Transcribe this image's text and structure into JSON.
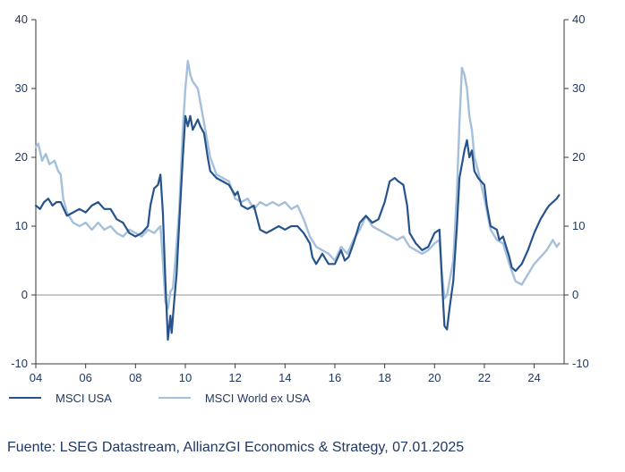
{
  "footer": {
    "source": "Fuente: LSEG Datastream, AllianzGI Economics & Strategy, 07.01.2025"
  },
  "chart_data": {
    "type": "line",
    "title": "",
    "xlabel": "",
    "ylabel": "",
    "grid": false,
    "legend_position": "bottom-left",
    "ylim": [
      -10,
      40
    ],
    "xlim": [
      2004,
      2025.2
    ],
    "yticks": [
      40,
      30,
      20,
      10,
      0,
      -10
    ],
    "xticks": [
      {
        "label": "04",
        "value": 2004
      },
      {
        "label": "06",
        "value": 2006
      },
      {
        "label": "08",
        "value": 2008
      },
      {
        "label": "10",
        "value": 2010
      },
      {
        "label": "12",
        "value": 2012
      },
      {
        "label": "14",
        "value": 2014
      },
      {
        "label": "16",
        "value": 2016
      },
      {
        "label": "18",
        "value": 2018
      },
      {
        "label": "20",
        "value": 2020
      },
      {
        "label": "22",
        "value": 2022
      },
      {
        "label": "24",
        "value": 2024
      }
    ],
    "zero_line": true,
    "axis_color": "#3a3a3a",
    "zero_line_color": "#909090",
    "text_color": "#1f3864",
    "series": [
      {
        "name": "MSCI USA",
        "color": "#26538c",
        "width": 2.2,
        "x": [
          2004.0,
          2004.17,
          2004.33,
          2004.5,
          2004.67,
          2004.83,
          2005.0,
          2005.25,
          2005.5,
          2005.75,
          2006.0,
          2006.25,
          2006.5,
          2006.75,
          2007.0,
          2007.25,
          2007.5,
          2007.75,
          2008.0,
          2008.25,
          2008.5,
          2008.6,
          2008.75,
          2008.9,
          2009.0,
          2009.1,
          2009.2,
          2009.3,
          2009.4,
          2009.45,
          2009.55,
          2009.65,
          2009.75,
          2009.9,
          2010.0,
          2010.1,
          2010.2,
          2010.3,
          2010.5,
          2010.6,
          2010.75,
          2010.9,
          2011.0,
          2011.25,
          2011.5,
          2011.75,
          2012.0,
          2012.1,
          2012.25,
          2012.5,
          2012.75,
          2013.0,
          2013.25,
          2013.5,
          2013.75,
          2014.0,
          2014.25,
          2014.5,
          2014.75,
          2015.0,
          2015.1,
          2015.25,
          2015.5,
          2015.75,
          2016.0,
          2016.25,
          2016.4,
          2016.55,
          2016.75,
          2017.0,
          2017.25,
          2017.5,
          2017.75,
          2018.0,
          2018.2,
          2018.4,
          2018.55,
          2018.75,
          2018.9,
          2019.0,
          2019.25,
          2019.5,
          2019.75,
          2020.0,
          2020.2,
          2020.3,
          2020.4,
          2020.5,
          2020.6,
          2020.75,
          2020.9,
          2021.0,
          2021.1,
          2021.2,
          2021.3,
          2021.4,
          2021.5,
          2021.6,
          2021.75,
          2022.0,
          2022.1,
          2022.25,
          2022.5,
          2022.6,
          2022.75,
          2023.0,
          2023.1,
          2023.25,
          2023.5,
          2023.75,
          2024.0,
          2024.25,
          2024.5,
          2024.6,
          2024.75,
          2024.9,
          2025.0
        ],
        "y": [
          13,
          12.5,
          13.5,
          14,
          13,
          13.5,
          13.5,
          11.5,
          12,
          12.5,
          12,
          13,
          13.5,
          12.5,
          12.5,
          11,
          10.5,
          9,
          8.5,
          9,
          10,
          13,
          15.5,
          16,
          17.5,
          12,
          2,
          -6.5,
          -3,
          -5.5,
          -1,
          3,
          10,
          20,
          26,
          24.5,
          26,
          24,
          25.5,
          24.5,
          23.5,
          20,
          18,
          17,
          16.5,
          16,
          14.5,
          15,
          13,
          12.5,
          13,
          9.5,
          9,
          9.5,
          10,
          9.5,
          10,
          10,
          9,
          7.5,
          5.5,
          4.5,
          6,
          4.5,
          4.5,
          6.5,
          5,
          5.5,
          7.5,
          10.5,
          11.5,
          10.5,
          11,
          13.5,
          16.5,
          17,
          16.5,
          16,
          13,
          9,
          7.5,
          6.5,
          7,
          9,
          9.5,
          2,
          -4.5,
          -5,
          -2,
          2,
          10,
          17,
          19,
          21,
          22.5,
          20,
          21,
          18,
          17,
          16,
          13,
          10,
          9.5,
          8,
          8.5,
          5.5,
          4,
          3.5,
          4.5,
          6.5,
          9,
          11,
          12.5,
          13,
          13.5,
          14,
          14.5
        ]
      },
      {
        "name": "MSCI World ex USA",
        "color": "#a5c0da",
        "width": 2.4,
        "x": [
          2004.0,
          2004.1,
          2004.25,
          2004.4,
          2004.55,
          2004.75,
          2004.9,
          2005.0,
          2005.1,
          2005.25,
          2005.5,
          2005.75,
          2006.0,
          2006.25,
          2006.5,
          2006.75,
          2007.0,
          2007.25,
          2007.5,
          2007.75,
          2008.0,
          2008.25,
          2008.5,
          2008.75,
          2009.0,
          2009.1,
          2009.2,
          2009.3,
          2009.4,
          2009.5,
          2009.6,
          2009.75,
          2009.9,
          2010.0,
          2010.1,
          2010.2,
          2010.3,
          2010.4,
          2010.5,
          2010.6,
          2010.75,
          2010.9,
          2011.0,
          2011.25,
          2011.5,
          2011.75,
          2012.0,
          2012.25,
          2012.5,
          2012.75,
          2013.0,
          2013.25,
          2013.5,
          2013.75,
          2014.0,
          2014.25,
          2014.5,
          2014.75,
          2015.0,
          2015.25,
          2015.5,
          2015.75,
          2016.0,
          2016.25,
          2016.5,
          2016.75,
          2017.0,
          2017.25,
          2017.5,
          2017.75,
          2018.0,
          2018.25,
          2018.5,
          2018.75,
          2019.0,
          2019.25,
          2019.5,
          2019.75,
          2020.0,
          2020.2,
          2020.3,
          2020.4,
          2020.5,
          2020.6,
          2020.75,
          2020.9,
          2021.0,
          2021.1,
          2021.2,
          2021.3,
          2021.4,
          2021.5,
          2021.6,
          2021.75,
          2022.0,
          2022.25,
          2022.5,
          2022.75,
          2023.0,
          2023.25,
          2023.5,
          2023.75,
          2024.0,
          2024.25,
          2024.5,
          2024.75,
          2024.9,
          2025.0
        ],
        "y": [
          21.5,
          22,
          19.5,
          20.5,
          19,
          19.5,
          18,
          17.5,
          14,
          12,
          10.5,
          10,
          10.5,
          9.5,
          10.5,
          9.5,
          10,
          9,
          8.5,
          9.5,
          9,
          8.5,
          9.5,
          9,
          10,
          5,
          -1,
          -2,
          0.5,
          1,
          5,
          12,
          24,
          30,
          34,
          32,
          31,
          30.5,
          30,
          28,
          25,
          22,
          20,
          17.5,
          17,
          16.5,
          14,
          13.5,
          14,
          12.5,
          13.5,
          13,
          13.5,
          13,
          13.5,
          12.5,
          13,
          11,
          8.5,
          7,
          6.5,
          6,
          5,
          7,
          6,
          8,
          9.5,
          11.5,
          10,
          9.5,
          9,
          8.5,
          8,
          8.5,
          7,
          6.5,
          6,
          6.5,
          7.5,
          8,
          3,
          -0.5,
          0,
          2,
          5,
          15,
          25,
          33,
          32,
          30,
          26,
          24,
          20,
          18,
          14,
          9.5,
          8,
          7.5,
          4.5,
          2,
          1.5,
          3,
          4.5,
          5.5,
          6.5,
          8,
          7,
          7.5
        ]
      }
    ]
  }
}
